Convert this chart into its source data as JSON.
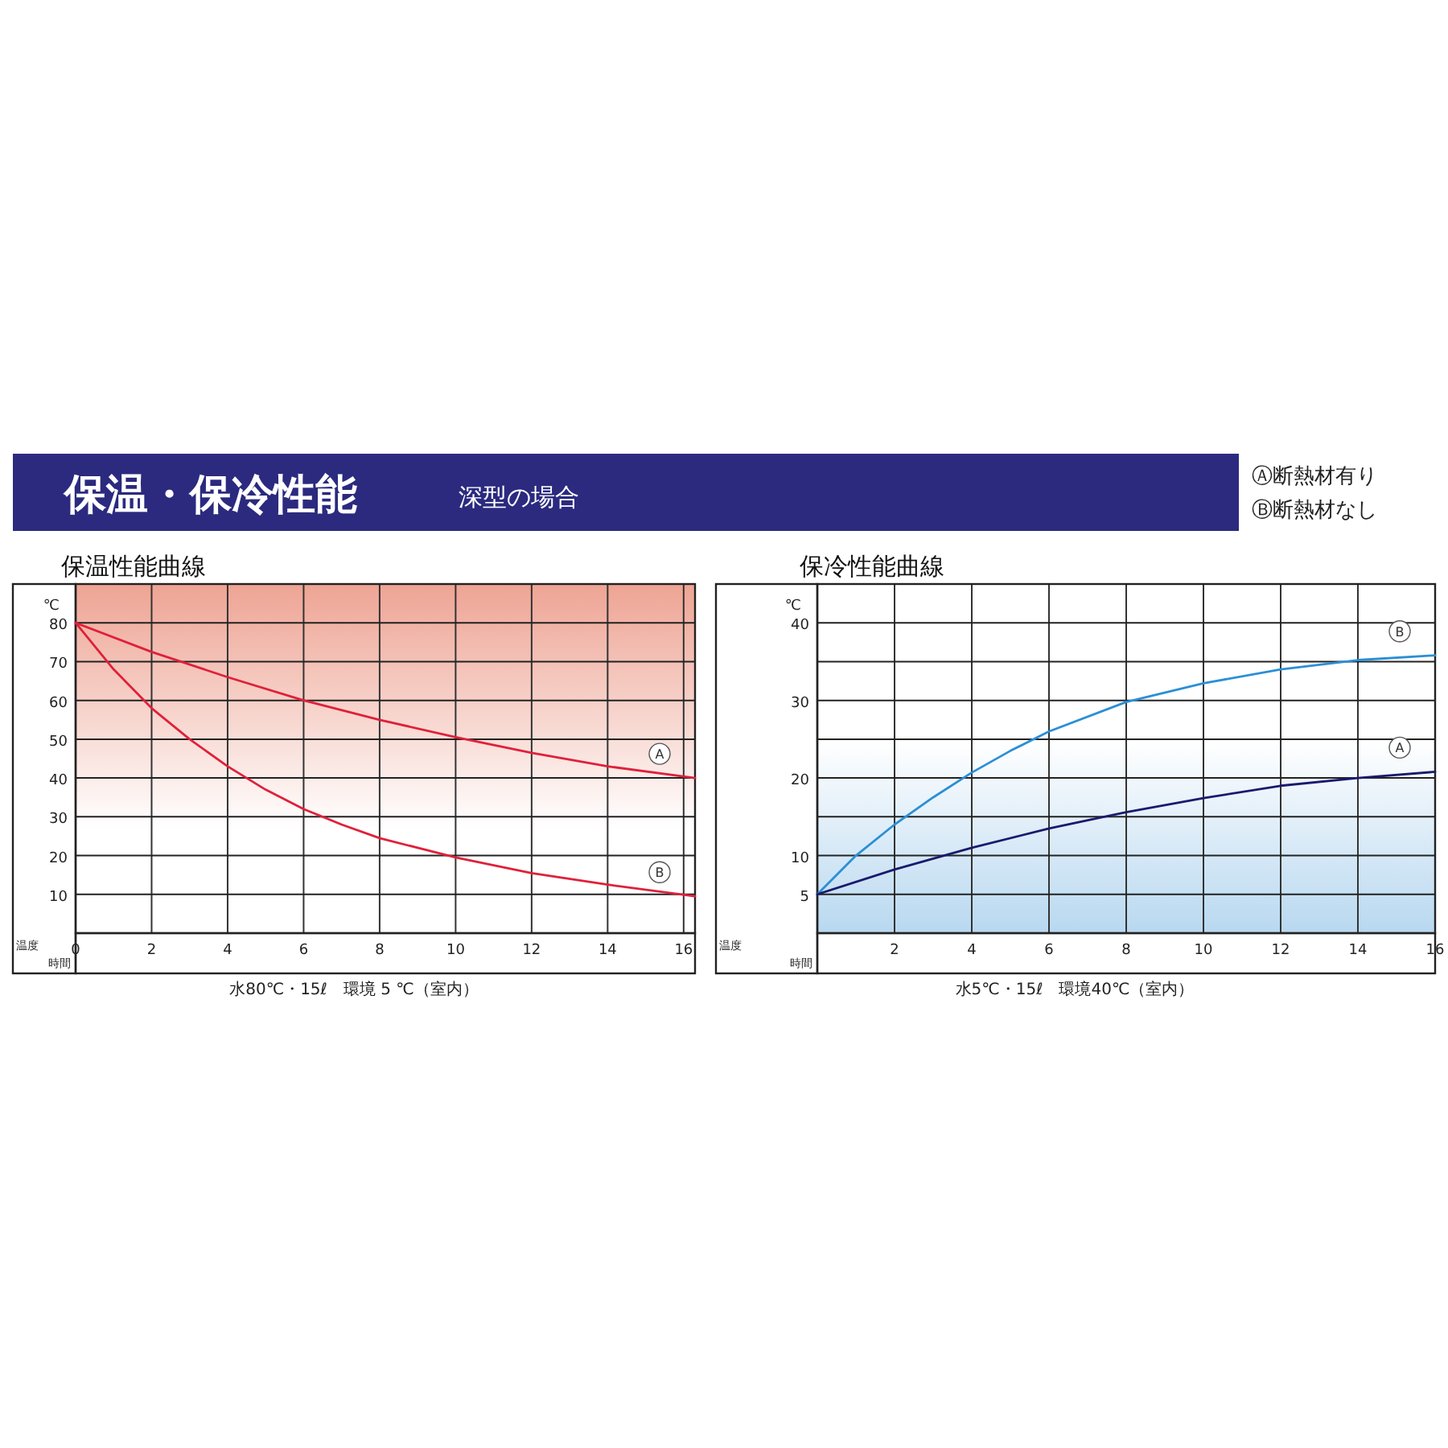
{
  "chart_data": [
    {
      "type": "other",
      "title": "保温・保冷性能",
      "subtitle": "深型の場合",
      "annotations": [
        "Ⓐ断熱材有り",
        "Ⓑ断熱材なし"
      ]
    },
    {
      "type": "line",
      "title": "保温性能曲線",
      "ylabel": "℃",
      "annotations": [
        "温度",
        "時間",
        "水80℃・15ℓ　環境 5 ℃（室内）"
      ],
      "xlim": [
        0,
        16.3
      ],
      "ylim": [
        0,
        90
      ],
      "xticks": [
        0,
        2,
        4,
        6,
        8,
        10,
        12,
        14,
        16
      ],
      "yticks": [
        10,
        20,
        30,
        40,
        50,
        60,
        70,
        80
      ],
      "grid": true,
      "series": [
        {
          "name": "A",
          "color": "#e0203a",
          "x": [
            0,
            2,
            4,
            6,
            8,
            10,
            12,
            14,
            16.3
          ],
          "values": [
            80,
            72.5,
            66,
            60,
            55,
            50.5,
            46.5,
            43,
            40
          ]
        },
        {
          "name": "B",
          "color": "#e0203a",
          "x": [
            0,
            1,
            2,
            3,
            4,
            5,
            6,
            7,
            8,
            10,
            12,
            14,
            16.3
          ],
          "values": [
            80,
            68,
            58,
            50,
            43,
            37,
            32,
            28,
            24.5,
            19.5,
            15.5,
            12.5,
            9.5
          ]
        }
      ]
    },
    {
      "type": "line",
      "title": "保冷性能曲線",
      "ylabel": "℃",
      "annotations": [
        "温度",
        "時間",
        "水5℃・15ℓ　環境40℃（室内）"
      ],
      "xlim": [
        0,
        16
      ],
      "ylim": [
        0,
        45
      ],
      "xticks": [
        2,
        4,
        6,
        8,
        10,
        12,
        14,
        16
      ],
      "yticks": [
        5,
        10,
        {
          "value": 15,
          "label": null
        },
        20,
        {
          "value": 25,
          "label": null
        },
        30,
        {
          "value": 35,
          "label": null
        },
        40
      ],
      "grid": true,
      "series": [
        {
          "name": "B",
          "color": "#2a8fd6",
          "x": [
            0,
            1,
            2,
            3,
            4,
            5,
            6,
            8,
            10,
            12,
            14,
            16
          ],
          "values": [
            5,
            10,
            14,
            17.5,
            20.7,
            23.5,
            26,
            29.8,
            32.2,
            34,
            35.2,
            35.8
          ]
        },
        {
          "name": "A",
          "color": "#1a1a6e",
          "x": [
            0,
            2,
            4,
            6,
            8,
            10,
            12,
            14,
            16
          ],
          "values": [
            5,
            8.2,
            11,
            13.5,
            15.6,
            17.4,
            19,
            20,
            20.8
          ]
        }
      ]
    }
  ]
}
